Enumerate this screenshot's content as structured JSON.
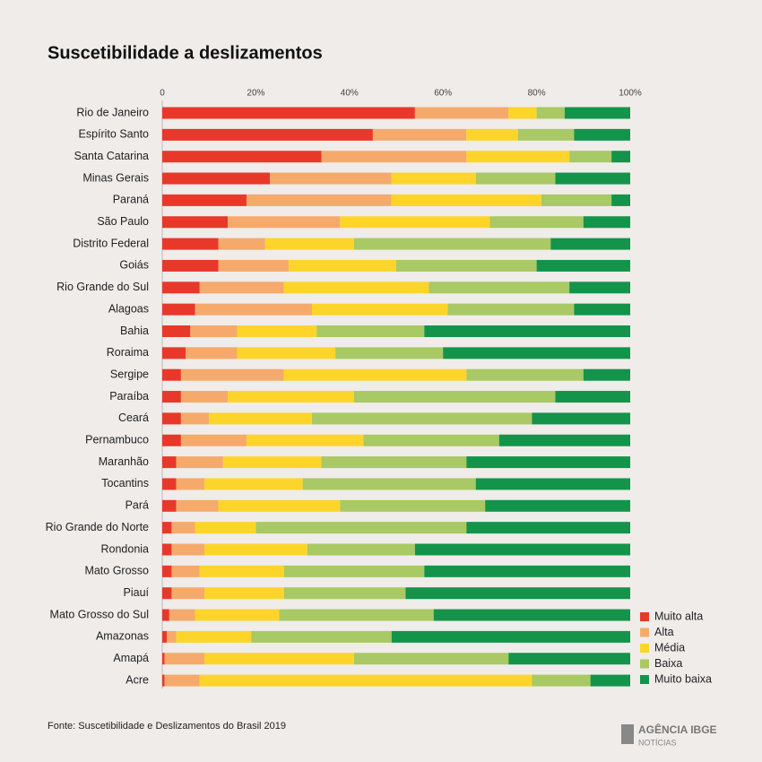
{
  "chart_data": {
    "type": "stacked-bar-horizontal",
    "title": "Suscetibilidade a deslizamentos",
    "categories": [
      "Rio de Janeiro",
      "Espírito Santo",
      "Santa Catarina",
      "Minas Gerais",
      "Paraná",
      "São Paulo",
      "Distrito Federal",
      "Goiás",
      "Rio Grande do Sul",
      "Alagoas",
      "Bahia",
      "Roraima",
      "Sergipe",
      "Paraíba",
      "Ceará",
      "Pernambuco",
      "Maranhão",
      "Tocantins",
      "Pará",
      "Rio Grande do Norte",
      "Rondonia",
      "Mato Grosso",
      "Piauí",
      "Mato Grosso do Sul",
      "Amazonas",
      "Amapá",
      "Acre"
    ],
    "series": [
      {
        "name": "Muito alta",
        "color": "#e8382a",
        "values": [
          54,
          45,
          34,
          23,
          18,
          14,
          12,
          12,
          8,
          7,
          6,
          5,
          4,
          4,
          4,
          4,
          3,
          3,
          3,
          2,
          2,
          2,
          2,
          1.5,
          1,
          0.5,
          0.5
        ]
      },
      {
        "name": "Alta",
        "color": "#f5aa6b",
        "values": [
          20,
          20,
          31,
          26,
          31,
          24,
          10,
          15,
          18,
          25,
          10,
          11,
          22,
          10,
          6,
          14,
          10,
          6,
          9,
          5,
          7,
          6,
          7,
          5.5,
          2,
          8.5,
          7.5
        ]
      },
      {
        "name": "Média",
        "color": "#fdd52a",
        "values": [
          6,
          11,
          22,
          18,
          32,
          32,
          19,
          23,
          31,
          29,
          17,
          21,
          39,
          27,
          22,
          25,
          21,
          21,
          26,
          13,
          22,
          18,
          17,
          18,
          16,
          32,
          71
        ]
      },
      {
        "name": "Baixa",
        "color": "#a8c963",
        "values": [
          6,
          12,
          9,
          17,
          15,
          20,
          42,
          30,
          30,
          27,
          23,
          23,
          25,
          43,
          47,
          29,
          31,
          37,
          31,
          45,
          23,
          30,
          26,
          33,
          30,
          33,
          12.5
        ]
      },
      {
        "name": "Muito baixa",
        "color": "#13944a",
        "values": [
          14,
          12,
          4,
          16,
          4,
          10,
          17,
          20,
          13,
          12,
          44,
          40,
          10,
          16,
          21,
          28,
          35,
          33,
          31,
          35,
          46,
          44,
          48,
          42,
          51,
          26,
          8.5
        ]
      }
    ],
    "xlim": [
      0,
      100
    ],
    "xticks": [
      0,
      {
        "value": 20,
        "label": "20%"
      },
      {
        "value": 40,
        "label": "40%"
      },
      {
        "value": 60,
        "label": "60%"
      },
      {
        "value": 80,
        "label": "80%"
      },
      {
        "value": 100,
        "label": "100%"
      }
    ],
    "legend": "bottom-right",
    "source": "Fonte: Suscetibilidade e Deslizamentos do Brasil 2019"
  },
  "footer": {
    "logo": "AGÊNCIA IBGE",
    "logo_sub": "NOTÍCIAS"
  }
}
